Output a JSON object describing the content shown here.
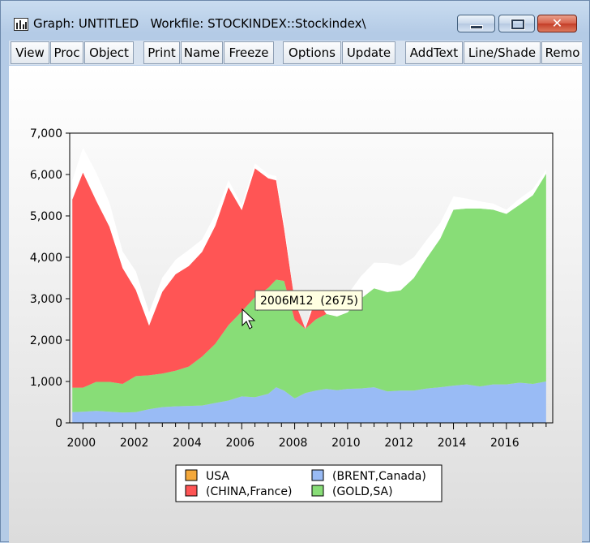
{
  "window": {
    "title": "Graph: UNTITLED   Workfile: STOCKINDEX::Stockindex\\",
    "icons": {
      "app": "graph-icon",
      "minimize": "minimize-icon",
      "maximize": "maximize-icon",
      "close": "close-icon"
    }
  },
  "toolbar": {
    "buttons": [
      "View",
      "Proc",
      "Object",
      "Print",
      "Name",
      "Freeze",
      "Options",
      "Update",
      "AddText",
      "Line/Shade",
      "Remo"
    ]
  },
  "tooltip": {
    "text": "2006M12  (2675)"
  },
  "colors": {
    "usa": "#f4a83a",
    "china_france": "#ff5555",
    "brent_canada": "#99bbf5",
    "gold_sa": "#88dd77"
  },
  "chart_data": {
    "type": "area",
    "stacked": true,
    "x_unit": "year",
    "xlim": [
      1999.5,
      2017.75
    ],
    "ylim": [
      0,
      7000
    ],
    "yticks": [
      "0",
      "1,000",
      "2,000",
      "3,000",
      "4,000",
      "5,000",
      "6,000",
      "7,000"
    ],
    "xticks": [
      "2000",
      "2002",
      "2004",
      "2006",
      "2008",
      "2010",
      "2012",
      "2014",
      "2016"
    ],
    "grid": false,
    "legend_position": "bottom-center",
    "x": [
      1999.6,
      2000.0,
      2000.5,
      2001.0,
      2001.5,
      2002.0,
      2002.5,
      2003.0,
      2003.5,
      2004.0,
      2004.5,
      2005.0,
      2005.5,
      2006.0,
      2006.5,
      2007.0,
      2007.3,
      2007.6,
      2008.0,
      2008.4,
      2008.8,
      2009.2,
      2009.6,
      2010.0,
      2010.5,
      2011.0,
      2011.5,
      2012.0,
      2012.5,
      2013.0,
      2013.5,
      2014.0,
      2014.5,
      2015.0,
      2015.5,
      2016.0,
      2016.5,
      2017.0,
      2017.5
    ],
    "series": [
      {
        "name": "USA",
        "color": "#f4a83a",
        "values": [
          0,
          0,
          0,
          0,
          0,
          0,
          0,
          0,
          0,
          0,
          0,
          0,
          0,
          0,
          0,
          0,
          0,
          0,
          0,
          0,
          0,
          0,
          0,
          0,
          0,
          0,
          0,
          0,
          0,
          0,
          0,
          0,
          0,
          0,
          0,
          0,
          0,
          0,
          0
        ]
      },
      {
        "name": "(BRENT,Canada)",
        "color": "#99bbf5",
        "values": [
          260,
          270,
          290,
          270,
          250,
          260,
          330,
          380,
          400,
          410,
          420,
          480,
          540,
          640,
          620,
          700,
          860,
          780,
          590,
          720,
          780,
          820,
          790,
          820,
          830,
          860,
          760,
          780,
          780,
          830,
          860,
          900,
          930,
          880,
          930,
          930,
          970,
          940,
          1000
        ]
      },
      {
        "name": "(GOLD,SA)",
        "color": "#88dd77",
        "values": [
          590,
          580,
          700,
          720,
          690,
          870,
          820,
          810,
          860,
          950,
          1180,
          1430,
          1820,
          2050,
          2420,
          2560,
          2600,
          2650,
          1900,
          1550,
          1720,
          1810,
          1780,
          1850,
          2170,
          2390,
          2400,
          2420,
          2720,
          3160,
          3590,
          4250,
          4250,
          4300,
          4220,
          4120,
          4300,
          4560,
          5020
        ]
      },
      {
        "name": "(CHINA,France)",
        "color": "#ff5555",
        "values": [
          4550,
          5200,
          4380,
          3750,
          2800,
          2080,
          1200,
          1980,
          2330,
          2430,
          2530,
          2850,
          3330,
          2450,
          3110,
          2650,
          2400,
          1270,
          450,
          0,
          500,
          0,
          0,
          0,
          0,
          0,
          0,
          0,
          0,
          0,
          0,
          0,
          0,
          0,
          0,
          0,
          0,
          0,
          0
        ]
      },
      {
        "name": "",
        "color": "#ffffff",
        "values": [
          460,
          600,
          680,
          590,
          400,
          450,
          320,
          340,
          350,
          390,
          300,
          270,
          170,
          120,
          120,
          100,
          100,
          120,
          0,
          0,
          180,
          300,
          400,
          430,
          540,
          620,
          700,
          600,
          500,
          440,
          380,
          320,
          240,
          170,
          150,
          100,
          150,
          150,
          100
        ]
      }
    ],
    "legend": [
      {
        "label": "USA",
        "color": "#f4a83a"
      },
      {
        "label": "(BRENT,Canada)",
        "color": "#99bbf5"
      },
      {
        "label": "(CHINA,France)",
        "color": "#ff5555"
      },
      {
        "label": "(GOLD,SA)",
        "color": "#88dd77"
      }
    ]
  }
}
